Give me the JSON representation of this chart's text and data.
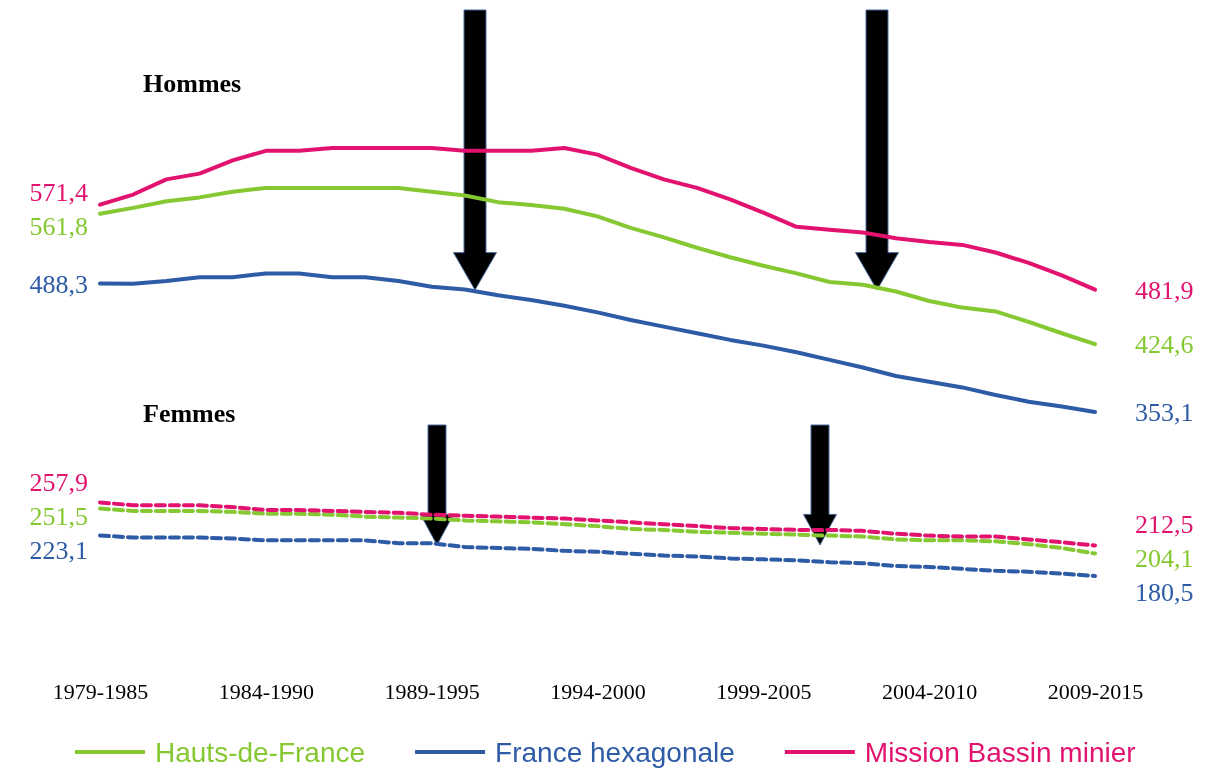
{
  "chart_data": {
    "type": "line",
    "categories": [
      "1979-1985",
      null,
      null,
      null,
      null,
      "1984-1990",
      null,
      null,
      null,
      null,
      "1989-1995",
      null,
      null,
      null,
      null,
      "1994-2000",
      null,
      null,
      null,
      null,
      "1999-2005",
      null,
      null,
      null,
      null,
      "2004-2010",
      null,
      null,
      null,
      null,
      "2009-2015"
    ],
    "tick_labels": "x",
    "legend": "bottom",
    "annotations": [
      "Hommes",
      "Femmes"
    ],
    "series": [
      {
        "name": "Hauts-de-France",
        "color": "#85c832",
        "line_style": "solid",
        "values": [
          561.8,
          568,
          575,
          579,
          585,
          589,
          589,
          589,
          589,
          589,
          585,
          581,
          574,
          571,
          567,
          559,
          547,
          537,
          526,
          516,
          507,
          499,
          490,
          487,
          480,
          470,
          463,
          459,
          448,
          436,
          424.6
        ],
        "value_labels": [
          "561,8",
          null,
          null,
          null,
          null,
          null,
          null,
          null,
          null,
          null,
          null,
          null,
          null,
          null,
          null,
          null,
          null,
          null,
          null,
          null,
          null,
          null,
          null,
          null,
          null,
          null,
          null,
          null,
          null,
          null,
          "424,6"
        ]
      },
      {
        "name": "France hexagonale",
        "color": "#2e5ba6",
        "line_style": "solid",
        "values": [
          488.3,
          488,
          491,
          495,
          495,
          499,
          499,
          495,
          495,
          491,
          485,
          482,
          476,
          471,
          465,
          458,
          450,
          443,
          436,
          429,
          423,
          416,
          408,
          400,
          391,
          385,
          379,
          371,
          364,
          359,
          353.1
        ],
        "value_labels": [
          "488,3",
          null,
          null,
          null,
          null,
          null,
          null,
          null,
          null,
          null,
          null,
          null,
          null,
          null,
          null,
          null,
          null,
          null,
          null,
          null,
          null,
          null,
          null,
          null,
          null,
          null,
          null,
          null,
          null,
          null,
          "353,1"
        ]
      },
      {
        "name": "Mission Bassin minier",
        "color": "#e2136e",
        "line_style": "solid",
        "values": [
          571.4,
          582,
          598,
          604,
          618,
          628,
          628,
          631,
          631,
          631,
          631,
          628,
          628,
          628,
          631,
          624,
          610,
          598,
          589,
          577,
          563,
          548,
          545,
          542,
          536,
          532,
          529,
          521,
          510,
          497,
          481.9
        ],
        "value_labels": [
          "571,4",
          null,
          null,
          null,
          null,
          null,
          null,
          null,
          null,
          null,
          null,
          null,
          null,
          null,
          null,
          null,
          null,
          null,
          null,
          null,
          null,
          null,
          null,
          null,
          null,
          null,
          null,
          null,
          null,
          null,
          "481,9"
        ]
      },
      {
        "color": "#85c832",
        "line_style": "dashed",
        "values": [
          251.5,
          249,
          249,
          249,
          248,
          246,
          246,
          245,
          243,
          242,
          241,
          239,
          238,
          237,
          235,
          233,
          230,
          229,
          227,
          226,
          225,
          224,
          223,
          222,
          219,
          218,
          218,
          217,
          214,
          210,
          204.1
        ],
        "value_labels": [
          "251,5",
          null,
          null,
          null,
          null,
          null,
          null,
          null,
          null,
          null,
          null,
          null,
          null,
          null,
          null,
          null,
          null,
          null,
          null,
          null,
          null,
          null,
          null,
          null,
          null,
          null,
          null,
          null,
          null,
          null,
          "204,1"
        ]
      },
      {
        "color": "#2e5ba6",
        "line_style": "dashed",
        "values": [
          223.1,
          221,
          221,
          221,
          220,
          218,
          218,
          218,
          218,
          215,
          215,
          211,
          210,
          209,
          207,
          206,
          204,
          202,
          201,
          199,
          198,
          197,
          195,
          194,
          191,
          190,
          188,
          186,
          185,
          183,
          180.5
        ],
        "value_labels": [
          "223,1",
          null,
          null,
          null,
          null,
          null,
          null,
          null,
          null,
          null,
          null,
          null,
          null,
          null,
          null,
          null,
          null,
          null,
          null,
          null,
          null,
          null,
          null,
          null,
          null,
          null,
          null,
          null,
          null,
          null,
          "180,5"
        ]
      },
      {
        "color": "#e2136e",
        "line_style": "dashed",
        "values": [
          257.9,
          255,
          255,
          255,
          253,
          250,
          250,
          249,
          248,
          247,
          245,
          244,
          243,
          242,
          241,
          239,
          237,
          235,
          233,
          231,
          230,
          229,
          229,
          228,
          225,
          223,
          222,
          222,
          219,
          216,
          212.5
        ],
        "value_labels": [
          "257,9",
          null,
          null,
          null,
          null,
          null,
          null,
          null,
          null,
          null,
          null,
          null,
          null,
          null,
          null,
          null,
          null,
          null,
          null,
          null,
          null,
          null,
          null,
          null,
          null,
          null,
          null,
          null,
          null,
          null,
          "212,5"
        ]
      }
    ]
  }
}
